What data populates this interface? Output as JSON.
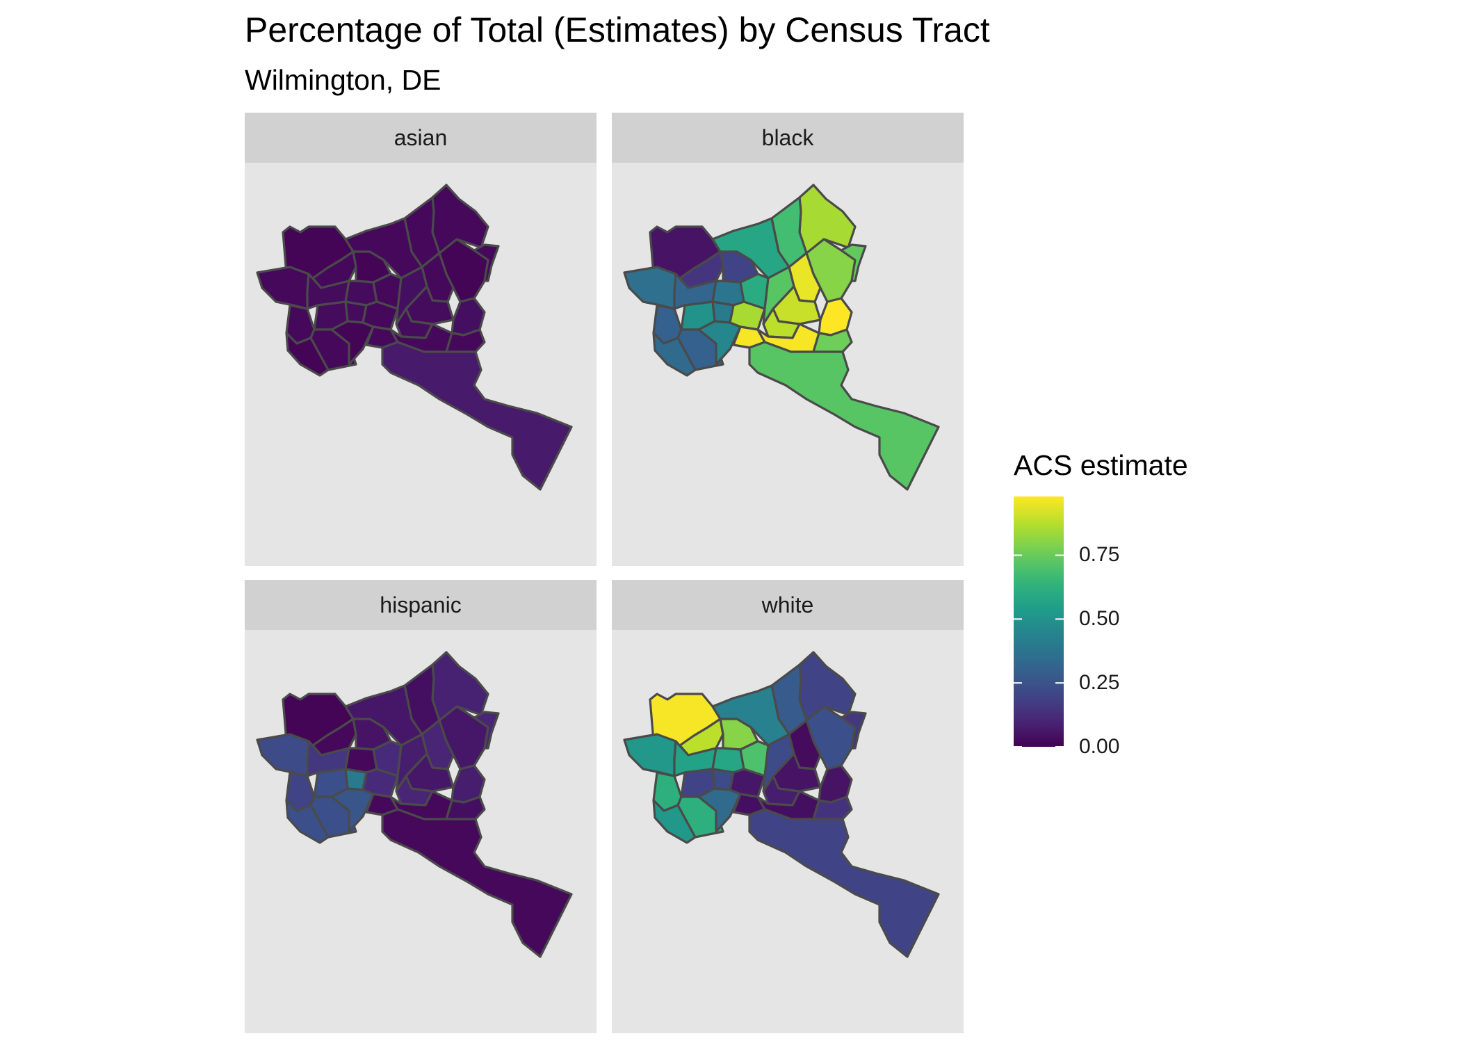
{
  "title": "Percentage of Total (Estimates) by Census Tract",
  "subtitle": "Wilmington, DE",
  "legend": {
    "title": "ACS estimate",
    "ticks": [
      {
        "label": "0.00",
        "value": 0.0
      },
      {
        "label": "0.25",
        "value": 0.25
      },
      {
        "label": "0.50",
        "value": 0.5
      },
      {
        "label": "0.75",
        "value": 0.75
      }
    ],
    "range": [
      0.0,
      0.98
    ],
    "palette": "viridis"
  },
  "panels": [
    {
      "label": "asian",
      "tracts": {
        "nw": 0.01,
        "ne1": 0.01,
        "ne2": 0.02,
        "ne3": 0.02,
        "ne4": 0.02,
        "n1": 0.02,
        "n2": 0.02,
        "n3": 0.01,
        "n4": 0.02,
        "w1": 0.02,
        "w2": 0.02,
        "c1": 0.03,
        "c2": 0.03,
        "c3": 0.02,
        "c4": 0.03,
        "c5": 0.03,
        "c6": 0.02,
        "e1": 0.03,
        "e2": 0.03,
        "e3": 0.04,
        "e4": 0.04,
        "sw1": 0.02,
        "sw2": 0.01,
        "s1": 0.01,
        "s2": 0.02,
        "se1": 0.02,
        "se2": 0.02,
        "river": 0.07
      }
    },
    {
      "label": "black",
      "tracts": {
        "nw": 0.05,
        "ne1": 0.8,
        "ne2": 0.85,
        "ne3": 0.68,
        "ne4": 0.74,
        "n1": 0.58,
        "n2": 0.15,
        "n3": 0.2,
        "n4": 0.95,
        "w1": 0.36,
        "w2": 0.3,
        "c1": 0.32,
        "c2": 0.38,
        "c3": 0.6,
        "c4": 0.4,
        "c5": 0.5,
        "c6": 0.85,
        "e1": 0.9,
        "e2": 0.88,
        "e3": 0.98,
        "e4": 0.72,
        "sw1": 0.3,
        "sw2": 0.34,
        "s1": 0.45,
        "s2": 0.97,
        "se1": 0.97,
        "se2": 0.76,
        "river": 0.72
      }
    },
    {
      "label": "hispanic",
      "tracts": {
        "nw": 0.01,
        "ne1": 0.06,
        "ne2": 0.09,
        "ne3": 0.04,
        "ne4": 0.1,
        "n1": 0.06,
        "n2": 0.02,
        "n3": 0.05,
        "n4": 0.1,
        "w1": 0.22,
        "w2": 0.2,
        "c1": 0.16,
        "c2": 0.02,
        "c3": 0.12,
        "c4": 0.4,
        "c5": 0.24,
        "c6": 0.12,
        "e1": 0.06,
        "e2": 0.1,
        "e3": 0.08,
        "e4": 0.08,
        "sw1": 0.24,
        "sw2": 0.24,
        "s1": 0.26,
        "s2": 0.02,
        "se1": 0.02,
        "se2": 0.04,
        "river": 0.02
      }
    },
    {
      "label": "white",
      "tracts": {
        "nw": 0.97,
        "ne1": 0.24,
        "ne2": 0.2,
        "ne3": 0.28,
        "ne4": 0.16,
        "n1": 0.43,
        "n2": 0.88,
        "n3": 0.8,
        "n4": 0.03,
        "w1": 0.52,
        "w2": 0.62,
        "c1": 0.56,
        "c2": 0.58,
        "c3": 0.7,
        "c4": 0.22,
        "c5": 0.2,
        "c6": 0.06,
        "e1": 0.05,
        "e2": 0.08,
        "e3": 0.05,
        "e4": 0.22,
        "sw1": 0.62,
        "sw2": 0.52,
        "s1": 0.34,
        "s2": 0.04,
        "se1": 0.04,
        "se2": 0.14,
        "river": 0.2
      }
    }
  ]
}
